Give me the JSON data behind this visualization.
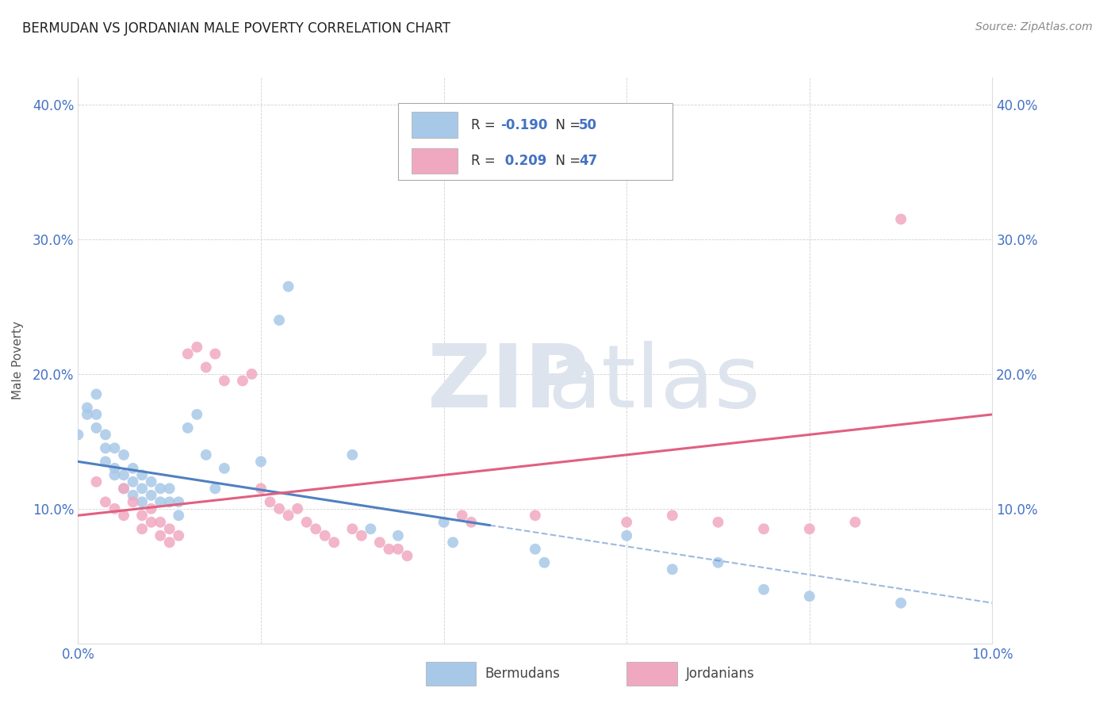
{
  "title": "BERMUDAN VS JORDANIAN MALE POVERTY CORRELATION CHART",
  "source": "Source: ZipAtlas.com",
  "ylabel": "Male Poverty",
  "xlim": [
    0.0,
    0.1
  ],
  "ylim": [
    0.0,
    0.42
  ],
  "yticks": [
    0.0,
    0.1,
    0.2,
    0.3,
    0.4
  ],
  "ytick_labels": [
    "",
    "10.0%",
    "20.0%",
    "30.0%",
    "40.0%"
  ],
  "xticks": [
    0.0,
    0.02,
    0.04,
    0.06,
    0.08,
    0.1
  ],
  "xtick_labels": [
    "0.0%",
    "",
    "",
    "",
    "",
    "10.0%"
  ],
  "bermuda_R": -0.19,
  "bermuda_N": 50,
  "jordan_R": 0.209,
  "jordan_N": 47,
  "bermuda_color": "#a8c8e8",
  "jordan_color": "#f0a8c0",
  "trend_bermuda_color": "#5080c0",
  "trend_jordan_color": "#e06080",
  "bermuda_points": [
    [
      0.0,
      0.155
    ],
    [
      0.001,
      0.175
    ],
    [
      0.001,
      0.17
    ],
    [
      0.002,
      0.185
    ],
    [
      0.002,
      0.17
    ],
    [
      0.002,
      0.16
    ],
    [
      0.003,
      0.155
    ],
    [
      0.003,
      0.145
    ],
    [
      0.003,
      0.135
    ],
    [
      0.004,
      0.145
    ],
    [
      0.004,
      0.13
    ],
    [
      0.004,
      0.125
    ],
    [
      0.005,
      0.14
    ],
    [
      0.005,
      0.125
    ],
    [
      0.005,
      0.115
    ],
    [
      0.006,
      0.13
    ],
    [
      0.006,
      0.12
    ],
    [
      0.006,
      0.11
    ],
    [
      0.007,
      0.125
    ],
    [
      0.007,
      0.115
    ],
    [
      0.007,
      0.105
    ],
    [
      0.008,
      0.12
    ],
    [
      0.008,
      0.11
    ],
    [
      0.009,
      0.115
    ],
    [
      0.009,
      0.105
    ],
    [
      0.01,
      0.115
    ],
    [
      0.01,
      0.105
    ],
    [
      0.011,
      0.105
    ],
    [
      0.011,
      0.095
    ],
    [
      0.012,
      0.16
    ],
    [
      0.013,
      0.17
    ],
    [
      0.014,
      0.14
    ],
    [
      0.015,
      0.115
    ],
    [
      0.016,
      0.13
    ],
    [
      0.02,
      0.135
    ],
    [
      0.022,
      0.24
    ],
    [
      0.023,
      0.265
    ],
    [
      0.03,
      0.14
    ],
    [
      0.032,
      0.085
    ],
    [
      0.035,
      0.08
    ],
    [
      0.04,
      0.09
    ],
    [
      0.041,
      0.075
    ],
    [
      0.05,
      0.07
    ],
    [
      0.051,
      0.06
    ],
    [
      0.06,
      0.08
    ],
    [
      0.065,
      0.055
    ],
    [
      0.07,
      0.06
    ],
    [
      0.075,
      0.04
    ],
    [
      0.08,
      0.035
    ],
    [
      0.09,
      0.03
    ]
  ],
  "jordan_points": [
    [
      0.002,
      0.12
    ],
    [
      0.003,
      0.105
    ],
    [
      0.004,
      0.1
    ],
    [
      0.005,
      0.115
    ],
    [
      0.005,
      0.095
    ],
    [
      0.006,
      0.105
    ],
    [
      0.007,
      0.095
    ],
    [
      0.007,
      0.085
    ],
    [
      0.008,
      0.1
    ],
    [
      0.008,
      0.09
    ],
    [
      0.009,
      0.09
    ],
    [
      0.009,
      0.08
    ],
    [
      0.01,
      0.085
    ],
    [
      0.01,
      0.075
    ],
    [
      0.011,
      0.08
    ],
    [
      0.012,
      0.215
    ],
    [
      0.013,
      0.22
    ],
    [
      0.014,
      0.205
    ],
    [
      0.015,
      0.215
    ],
    [
      0.016,
      0.195
    ],
    [
      0.018,
      0.195
    ],
    [
      0.019,
      0.2
    ],
    [
      0.02,
      0.115
    ],
    [
      0.021,
      0.105
    ],
    [
      0.022,
      0.1
    ],
    [
      0.023,
      0.095
    ],
    [
      0.024,
      0.1
    ],
    [
      0.025,
      0.09
    ],
    [
      0.026,
      0.085
    ],
    [
      0.027,
      0.08
    ],
    [
      0.028,
      0.075
    ],
    [
      0.03,
      0.085
    ],
    [
      0.031,
      0.08
    ],
    [
      0.033,
      0.075
    ],
    [
      0.034,
      0.07
    ],
    [
      0.035,
      0.07
    ],
    [
      0.036,
      0.065
    ],
    [
      0.042,
      0.095
    ],
    [
      0.043,
      0.09
    ],
    [
      0.05,
      0.095
    ],
    [
      0.06,
      0.09
    ],
    [
      0.065,
      0.095
    ],
    [
      0.07,
      0.09
    ],
    [
      0.075,
      0.085
    ],
    [
      0.08,
      0.085
    ],
    [
      0.085,
      0.09
    ],
    [
      0.09,
      0.315
    ]
  ],
  "trend_berm_x0": 0.0,
  "trend_berm_y0": 0.135,
  "trend_berm_x1": 0.1,
  "trend_berm_y1": 0.03,
  "trend_berm_solid_end": 0.045,
  "trend_jord_x0": 0.0,
  "trend_jord_y0": 0.095,
  "trend_jord_x1": 0.1,
  "trend_jord_y1": 0.17
}
